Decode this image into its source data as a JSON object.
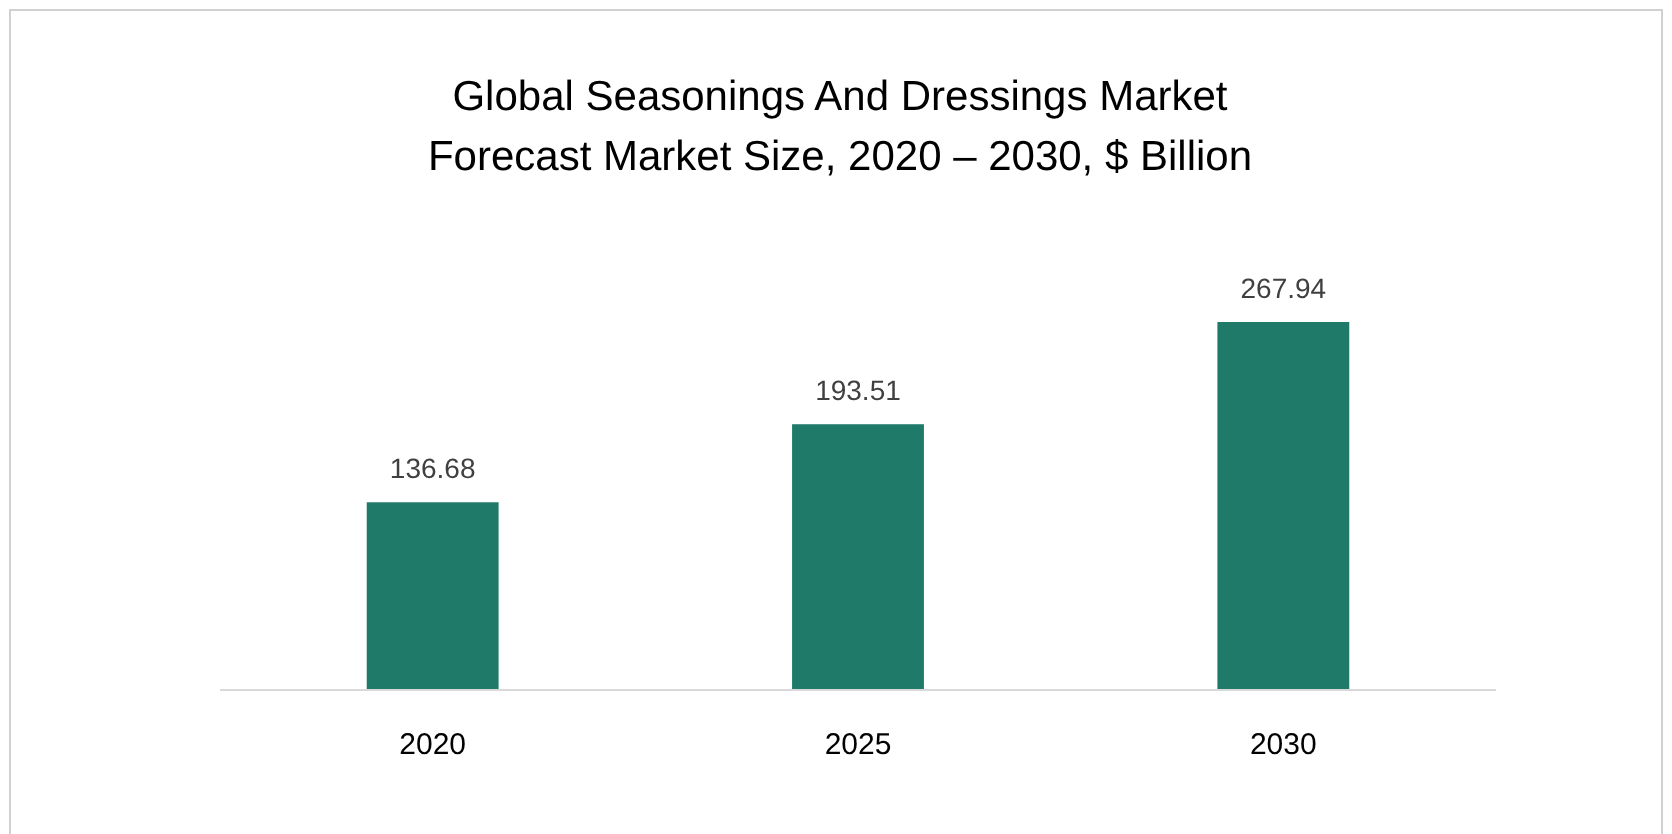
{
  "chart_data": {
    "type": "bar",
    "title": "Global Seasonings And Dressings Market\nForecast Market Size, 2020 – 2030, $ Billion",
    "categories": [
      "2020",
      "2025",
      "2030"
    ],
    "values": [
      136.68,
      193.51,
      267.94
    ],
    "color": "#1f7a6a",
    "data_labels": true
  }
}
